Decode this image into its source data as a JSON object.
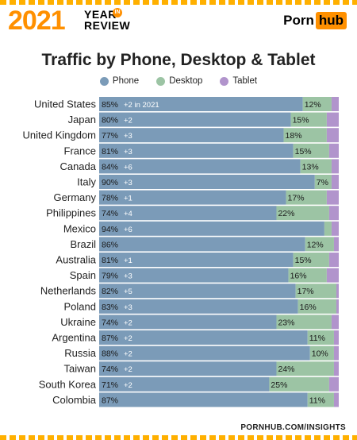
{
  "header": {
    "year": "2021",
    "year_word": "YEAR",
    "in_word": "IN",
    "review_word": "REVIEW",
    "brand_left": "Porn",
    "brand_right": "hub"
  },
  "footer": {
    "url": "PORNHUB.COM/INSIGHTS"
  },
  "colors": {
    "phone": "#7b9bb8",
    "desktop": "#9cc4a4",
    "tablet": "#b194cc"
  },
  "chart_data": {
    "type": "bar",
    "stacked": true,
    "orientation": "horizontal",
    "title": "Traffic by Phone, Desktop & Tablet",
    "legend": [
      "Phone",
      "Desktop",
      "Tablet"
    ],
    "legend_position": "top",
    "first_change_suffix": "in 2021",
    "categories": [
      "United States",
      "Japan",
      "United Kingdom",
      "France",
      "Canada",
      "Italy",
      "Germany",
      "Philippines",
      "Mexico",
      "Brazil",
      "Australia",
      "Spain",
      "Netherlands",
      "Poland",
      "Ukraine",
      "Argentina",
      "Russia",
      "Taiwan",
      "South Korea",
      "Colombia"
    ],
    "series": [
      {
        "name": "Phone",
        "values": [
          85,
          80,
          77,
          81,
          84,
          90,
          78,
          74,
          94,
          86,
          81,
          79,
          82,
          83,
          74,
          87,
          88,
          74,
          71,
          87
        ]
      },
      {
        "name": "Desktop",
        "values": [
          12,
          15,
          18,
          15,
          13,
          7,
          17,
          22,
          3,
          12,
          15,
          16,
          17,
          16,
          23,
          11,
          10,
          24,
          25,
          11
        ]
      },
      {
        "name": "Tablet",
        "values": [
          3,
          5,
          5,
          4,
          3,
          3,
          5,
          4,
          3,
          2,
          4,
          5,
          1,
          1,
          3,
          2,
          2,
          2,
          4,
          2
        ]
      }
    ],
    "phone_change": [
      "+2",
      "+2",
      "+3",
      "+3",
      "+6",
      "+3",
      "+1",
      "+4",
      "+6",
      "",
      "+1",
      "+3",
      "+5",
      "+3",
      "+2",
      "+2",
      "+2",
      "+2",
      "+2",
      ""
    ],
    "desktop_labels": [
      "12%",
      "15%",
      "18%",
      "15%",
      "13%",
      "7%",
      "17%",
      "22%",
      "",
      "12%",
      "15%",
      "16%",
      "17%",
      "16%",
      "23%",
      "11%",
      "10%",
      "24%",
      "25%",
      "11%"
    ],
    "phone_labels": [
      "85%",
      "80%",
      "77%",
      "81%",
      "84%",
      "90%",
      "78%",
      "74%",
      "94%",
      "86%",
      "81%",
      "79%",
      "82%",
      "83%",
      "74%",
      "87%",
      "88%",
      "74%",
      "71%",
      "87%"
    ],
    "xlim": [
      0,
      100
    ],
    "grid": false
  }
}
